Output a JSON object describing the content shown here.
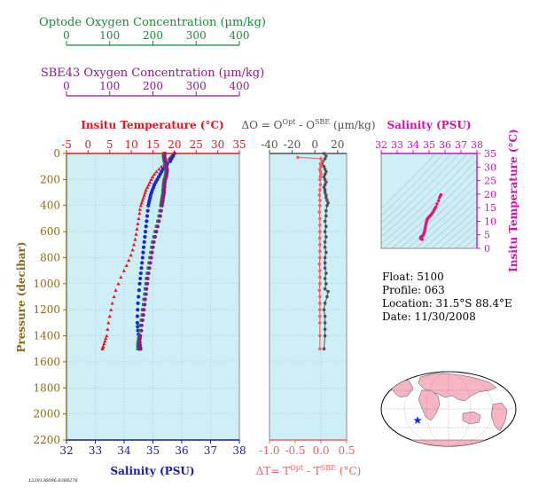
{
  "colors": {
    "optode": "#1a8a3a",
    "sbe43": "#8b1a8b",
    "temperature": "#e8141e",
    "salinity_axis": "#1a1aaa",
    "salinity_points": "#1428d4",
    "delta_o": "#505050",
    "delta_t": "#f06060",
    "ts_points": "#e8147a",
    "ts_axis": "#cc14b4",
    "plot_bg": "#cdeef7",
    "pressure_axis": "#8a6a14",
    "grid": "#b4b4b4"
  },
  "optode_axis": {
    "title": "Optode Oxygen Concentration (µm/kg)",
    "ticks": [
      "0",
      "100",
      "200",
      "300",
      "400"
    ]
  },
  "sbe43_axis": {
    "title": "SBE43 Oxygen Concentration (µm/kg)",
    "ticks": [
      "0",
      "100",
      "200",
      "300",
      "400"
    ]
  },
  "temperature_axis": {
    "title": "Insitu Temperature (°C)",
    "ticks": [
      "-5",
      "0",
      "5",
      "10",
      "15",
      "20",
      "25",
      "30",
      "35"
    ]
  },
  "salinity_axis": {
    "title": "Salinity (PSU)",
    "ticks": [
      "32",
      "33",
      "34",
      "35",
      "36",
      "37",
      "38"
    ]
  },
  "pressure_axis": {
    "title": "Pressure (decibar)",
    "ticks": [
      "0",
      "200",
      "400",
      "600",
      "800",
      "1000",
      "1200",
      "1400",
      "1600",
      "1800",
      "2000",
      "2200"
    ]
  },
  "delta_o_axis": {
    "title_main": "ΔO = O",
    "title_sup1": "Opt",
    "title_mid": " - O",
    "title_sup2": "SBE",
    "title_unit": " (µm/kg)",
    "ticks": [
      "-40",
      "-20",
      "0",
      "20"
    ]
  },
  "delta_t_axis": {
    "title_main": "ΔT= T",
    "title_sup1": "Opt",
    "title_mid": " - T",
    "title_sup2": "SBE",
    "title_unit": " (°C)",
    "ticks": [
      "-1.0",
      "-0.5",
      "0.0",
      "0.5"
    ]
  },
  "ts_salinity_axis": {
    "title": "Salinity (PSU)",
    "ticks": [
      "32",
      "33",
      "34",
      "35",
      "36",
      "37",
      "38"
    ]
  },
  "ts_temperature_axis": {
    "title": "Insitu Temperature (°C)",
    "ticks": [
      "0",
      "5",
      "10",
      "15",
      "20",
      "25",
      "30",
      "35"
    ]
  },
  "info": {
    "float": "Float:  5100",
    "profile": "Profile:  063",
    "location": "Location:  31.5°S  88.4°E",
    "date": "Date:  11/30/2008"
  },
  "footnote": "1229136096.0388276",
  "map": {
    "marker": "star"
  },
  "chart_data": [
    {
      "type": "scatter",
      "name": "profile",
      "ylim": [
        0,
        2200
      ],
      "y_reversed": true,
      "xlim_temperature": [
        -5,
        35
      ],
      "xlim_salinity": [
        32,
        38
      ],
      "xlim_oxygen": [
        0,
        400
      ],
      "series": [
        {
          "name": "Insitu Temperature",
          "color": "#e8141e",
          "marker": "triangle",
          "x": [
            19.8,
            19.6,
            19.3,
            19.0,
            18.7,
            18.2,
            17.6,
            17.0,
            16.4,
            15.8,
            15.3,
            14.9,
            14.6,
            14.3,
            14.0,
            13.7,
            13.4,
            13.2,
            13.0,
            12.8,
            12.6,
            12.4,
            12.2,
            12.0,
            11.9,
            11.7,
            11.5,
            11.3,
            11.1,
            10.9,
            10.6,
            10.3,
            9.9,
            9.4,
            8.9,
            8.3,
            7.6,
            7.0,
            6.4,
            6.0,
            5.6,
            5.3,
            5.0,
            4.7,
            4.5,
            4.3,
            4.1,
            3.9,
            3.7,
            3.5,
            3.4,
            3.3
          ],
          "y": [
            0,
            10,
            20,
            30,
            40,
            60,
            80,
            100,
            120,
            140,
            160,
            180,
            200,
            220,
            240,
            260,
            280,
            300,
            320,
            340,
            360,
            380,
            400,
            430,
            460,
            500,
            540,
            580,
            620,
            660,
            700,
            740,
            780,
            820,
            860,
            900,
            950,
            1000,
            1050,
            1100,
            1150,
            1200,
            1250,
            1300,
            1350,
            1400,
            1420,
            1440,
            1460,
            1480,
            1490,
            1500
          ]
        },
        {
          "name": "Salinity",
          "color": "#1428d4",
          "marker": "circle",
          "x": [
            35.75,
            35.7,
            35.65,
            35.6,
            35.5,
            35.42,
            35.35,
            35.3,
            35.25,
            35.2,
            35.15,
            35.1,
            35.05,
            35.02,
            34.98,
            34.95,
            34.92,
            34.9,
            34.88,
            34.86,
            34.84,
            34.82,
            34.8,
            34.78,
            34.76,
            34.74,
            34.72,
            34.7,
            34.68,
            34.66,
            34.64,
            34.62,
            34.6,
            34.58,
            34.56,
            34.54,
            34.52,
            34.5,
            34.48,
            34.47,
            34.46,
            34.46,
            34.47,
            34.48,
            34.5,
            34.52,
            34.54,
            34.55,
            34.56,
            34.57
          ],
          "y": [
            0,
            20,
            40,
            60,
            80,
            100,
            120,
            140,
            160,
            180,
            200,
            220,
            240,
            260,
            280,
            300,
            320,
            340,
            360,
            380,
            400,
            440,
            480,
            520,
            560,
            600,
            640,
            680,
            720,
            760,
            800,
            840,
            880,
            920,
            960,
            1000,
            1050,
            1100,
            1150,
            1200,
            1250,
            1300,
            1330,
            1360,
            1390,
            1420,
            1450,
            1470,
            1490,
            1500
          ]
        },
        {
          "name": "Optode Oxygen",
          "color": "#1a8a3a",
          "marker": "square",
          "x": [
            225,
            224,
            225,
            226,
            228,
            229,
            230,
            230,
            229,
            228,
            226,
            225,
            224,
            224,
            223,
            223,
            222,
            221,
            220,
            219,
            218,
            216,
            214,
            211,
            208,
            205,
            202,
            199,
            197,
            195,
            193,
            191,
            189,
            187,
            185,
            184,
            182,
            181,
            179,
            178,
            176,
            175,
            173,
            171,
            170,
            168,
            167,
            166,
            165,
            165,
            165
          ],
          "y": [
            0,
            20,
            40,
            60,
            80,
            100,
            120,
            140,
            160,
            180,
            200,
            220,
            240,
            260,
            280,
            300,
            320,
            340,
            360,
            380,
            400,
            440,
            480,
            520,
            560,
            600,
            640,
            680,
            720,
            760,
            800,
            840,
            880,
            920,
            960,
            1000,
            1040,
            1080,
            1120,
            1160,
            1200,
            1240,
            1280,
            1320,
            1360,
            1400,
            1420,
            1440,
            1460,
            1480,
            1500
          ]
        },
        {
          "name": "SBE43 Oxygen",
          "color": "#8b1a8b",
          "marker": "circle",
          "x": [
            228,
            227,
            228,
            229,
            231,
            232,
            233,
            233,
            232,
            231,
            229,
            228,
            227,
            227,
            226,
            226,
            225,
            224,
            223,
            222,
            221,
            219,
            217,
            214,
            211,
            208,
            205,
            202,
            200,
            198,
            196,
            194,
            192,
            190,
            188,
            187,
            185,
            184,
            182,
            181,
            179,
            178,
            176,
            174,
            173,
            171,
            170,
            169,
            168,
            168,
            168
          ],
          "y": [
            0,
            20,
            40,
            60,
            80,
            100,
            120,
            140,
            160,
            180,
            200,
            220,
            240,
            260,
            280,
            300,
            320,
            340,
            360,
            380,
            400,
            440,
            480,
            520,
            560,
            600,
            640,
            680,
            720,
            760,
            800,
            840,
            880,
            920,
            960,
            1000,
            1040,
            1080,
            1120,
            1160,
            1200,
            1240,
            1280,
            1320,
            1360,
            1400,
            1420,
            1440,
            1460,
            1480,
            1500
          ]
        }
      ]
    },
    {
      "type": "scatter",
      "name": "differences",
      "ylim": [
        0,
        2200
      ],
      "y_reversed": true,
      "xlim_delta_o": [
        -45,
        30
      ],
      "xlim_delta_t": [
        -1.0,
        0.5
      ],
      "series": [
        {
          "name": "ΔO",
          "color": "#505050",
          "marker": "circle",
          "x": [
            8,
            10,
            9,
            7,
            6,
            8,
            9,
            10,
            9,
            8,
            9,
            10,
            9,
            8,
            9,
            9,
            10,
            10,
            11,
            12,
            11,
            10,
            10,
            9,
            10,
            9,
            10,
            9,
            9,
            10,
            9,
            9,
            9,
            10,
            9,
            10,
            9,
            12,
            11,
            9,
            8,
            9,
            9,
            9,
            9,
            8
          ],
          "y": [
            0,
            20,
            40,
            60,
            80,
            100,
            120,
            140,
            160,
            180,
            200,
            220,
            240,
            260,
            280,
            300,
            320,
            340,
            360,
            380,
            400,
            440,
            480,
            520,
            560,
            600,
            640,
            680,
            720,
            760,
            800,
            840,
            880,
            920,
            960,
            1000,
            1040,
            1060,
            1100,
            1150,
            1200,
            1250,
            1300,
            1350,
            1400,
            1500
          ]
        },
        {
          "name": "ΔT",
          "color": "#f06060",
          "marker": "circle",
          "x": [
            -0.45,
            0.0,
            0.02,
            -0.01,
            0.0,
            -0.02,
            -0.01,
            0.0,
            -0.01,
            -0.02,
            -0.01,
            -0.02,
            -0.03,
            -0.02,
            -0.02,
            -0.03,
            -0.02,
            -0.02,
            -0.02,
            -0.02,
            -0.02,
            -0.02,
            -0.02,
            -0.03,
            -0.02,
            -0.02,
            -0.02,
            -0.03,
            -0.02,
            -0.02,
            -0.02,
            -0.02,
            -0.02,
            -0.02,
            -0.02
          ],
          "y": [
            30,
            40,
            60,
            80,
            100,
            120,
            140,
            160,
            180,
            200,
            240,
            280,
            320,
            360,
            400,
            450,
            500,
            550,
            600,
            650,
            700,
            750,
            800,
            850,
            900,
            950,
            1000,
            1050,
            1100,
            1150,
            1200,
            1250,
            1300,
            1400,
            1500
          ]
        }
      ]
    },
    {
      "type": "scatter",
      "name": "temperature-salinity",
      "xlim": [
        32,
        38
      ],
      "ylim": [
        0,
        35
      ],
      "series": [
        {
          "name": "T-S",
          "color": "#e8147a",
          "marker": "circle",
          "x": [
            35.75,
            35.7,
            35.65,
            35.6,
            35.5,
            35.42,
            35.35,
            35.3,
            35.25,
            35.2,
            35.15,
            35.1,
            35.05,
            35.02,
            34.98,
            34.95,
            34.92,
            34.9,
            34.88,
            34.86,
            34.84,
            34.82,
            34.8,
            34.78,
            34.76,
            34.74,
            34.72,
            34.7,
            34.68,
            34.66,
            34.64,
            34.62,
            34.6,
            34.58,
            34.56,
            34.54,
            34.52,
            34.5,
            34.48,
            34.47,
            34.46,
            34.46,
            34.47,
            34.48,
            34.5,
            34.52,
            34.54,
            34.55,
            34.56,
            34.57
          ],
          "y": [
            19.8,
            19.3,
            18.7,
            17.6,
            16.4,
            15.3,
            14.6,
            14.0,
            13.4,
            13.0,
            12.6,
            12.2,
            11.9,
            11.7,
            11.5,
            11.3,
            11.1,
            10.9,
            10.6,
            10.3,
            9.9,
            9.4,
            8.9,
            8.3,
            7.6,
            7.0,
            6.4,
            6.0,
            5.6,
            5.3,
            5.0,
            4.8,
            4.7,
            4.6,
            4.5,
            4.4,
            4.3,
            4.2,
            4.1,
            4.0,
            3.9,
            3.8,
            3.7,
            3.6,
            3.5,
            3.5,
            3.4,
            3.4,
            3.3,
            3.3
          ]
        }
      ]
    }
  ]
}
